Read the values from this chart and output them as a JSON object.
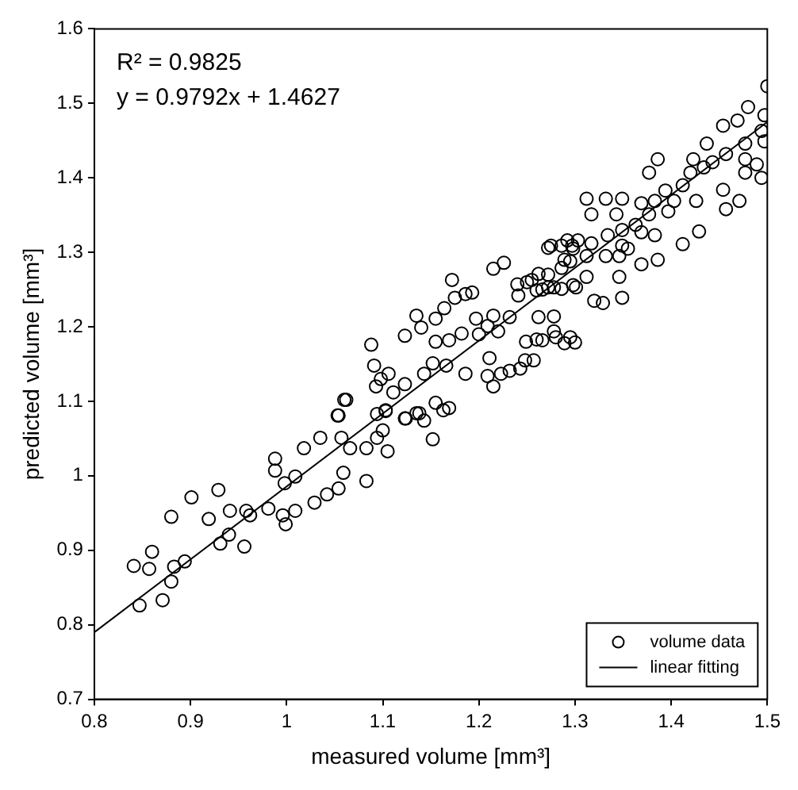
{
  "chart_data": {
    "type": "scatter",
    "xlabel": "measured volume [mm³]",
    "ylabel": "predicted volume [mm³]",
    "annotations": [
      "R² = 0.9825",
      "y = 0.9792x + 1.4627"
    ],
    "xlim": [
      0.8,
      1.5
    ],
    "ylim": [
      0.7,
      1.6
    ],
    "xticks": [
      0.8,
      0.9,
      1,
      1.1,
      1.2,
      1.3,
      1.4,
      1.5
    ],
    "yticks": [
      0.7,
      0.8,
      0.9,
      1,
      1.1,
      1.2,
      1.3,
      1.4,
      1.5,
      1.6
    ],
    "grid": false,
    "legend": "bottom right",
    "series": [
      {
        "name": "volume data",
        "marker": "circle",
        "color": "#000000",
        "x": [
          0.847,
          0.871,
          0.841,
          0.857,
          0.86,
          0.88,
          0.883,
          0.894,
          0.88,
          0.901,
          0.919,
          0.929,
          0.931,
          0.94,
          0.941,
          0.956,
          0.958,
          0.962,
          0.981,
          0.988,
          0.988,
          0.996,
          0.999,
          1.009,
          0.998,
          1.009,
          1.018,
          1.029,
          1.042,
          1.054,
          1.059,
          1.083,
          1.035,
          1.057,
          1.066,
          1.054,
          1.062,
          1.083,
          1.094,
          1.103,
          1.1,
          1.105,
          1.094,
          1.124,
          1.135,
          1.088,
          1.06,
          1.053,
          1.091,
          1.098,
          1.093,
          1.106,
          1.123,
          1.135,
          1.14,
          1.155,
          1.164,
          1.172,
          1.175,
          1.186,
          1.193,
          1.155,
          1.169,
          1.182,
          1.152,
          1.143,
          1.166,
          1.186,
          1.123,
          1.111,
          1.103,
          1.123,
          1.138,
          1.143,
          1.152,
          1.163,
          1.169,
          1.155,
          1.197,
          1.2,
          1.209,
          1.215,
          1.22,
          1.211,
          1.209,
          1.215,
          1.223,
          1.232,
          1.248,
          1.249,
          1.266,
          1.278,
          1.289,
          1.262,
          1.232,
          1.215,
          1.226,
          1.24,
          1.25,
          1.262,
          1.266,
          1.278,
          1.301,
          1.272,
          1.286,
          1.289,
          1.297,
          1.5,
          1.48,
          1.469,
          1.454,
          1.497,
          1.494,
          1.477,
          1.497,
          1.437,
          1.457,
          1.477,
          1.489,
          1.443,
          1.494,
          1.477,
          1.423,
          1.42,
          1.434,
          1.386,
          1.377,
          1.412,
          1.454,
          1.471,
          1.457,
          1.426,
          1.394,
          1.403,
          1.383,
          1.397,
          1.369,
          1.312,
          1.332,
          1.349,
          1.317,
          1.343,
          1.377,
          1.363,
          1.349,
          1.334,
          1.349,
          1.369,
          1.383,
          1.429,
          1.412,
          1.275,
          1.292,
          1.303,
          1.298,
          1.312,
          1.317,
          1.332,
          1.346,
          1.355,
          1.369,
          1.386,
          1.346,
          1.32,
          1.329,
          1.349,
          1.312,
          1.298,
          1.295,
          1.286,
          1.272,
          1.255,
          1.26,
          1.272,
          1.286,
          1.241,
          1.278,
          1.26,
          1.28,
          1.295,
          1.3,
          1.257,
          1.243
        ],
        "values": [
          0.826,
          0.833,
          0.879,
          0.875,
          0.898,
          0.858,
          0.878,
          0.885,
          0.945,
          0.971,
          0.942,
          0.981,
          0.909,
          0.921,
          0.953,
          0.905,
          0.953,
          0.947,
          0.956,
          1.023,
          1.007,
          0.947,
          0.935,
          0.953,
          0.99,
          0.999,
          1.037,
          0.964,
          0.975,
          0.983,
          1.004,
          0.993,
          1.051,
          1.051,
          1.037,
          1.081,
          1.102,
          1.037,
          1.083,
          1.087,
          1.061,
          1.033,
          1.051,
          1.077,
          1.084,
          1.176,
          1.102,
          1.081,
          1.148,
          1.13,
          1.12,
          1.137,
          1.188,
          1.215,
          1.199,
          1.211,
          1.225,
          1.263,
          1.239,
          1.244,
          1.246,
          1.18,
          1.182,
          1.191,
          1.151,
          1.137,
          1.148,
          1.137,
          1.123,
          1.112,
          1.088,
          1.077,
          1.084,
          1.074,
          1.049,
          1.088,
          1.091,
          1.098,
          1.211,
          1.19,
          1.201,
          1.215,
          1.194,
          1.158,
          1.134,
          1.12,
          1.137,
          1.141,
          1.155,
          1.18,
          1.182,
          1.194,
          1.178,
          1.213,
          1.213,
          1.278,
          1.286,
          1.257,
          1.26,
          1.271,
          1.25,
          1.253,
          1.253,
          1.306,
          1.309,
          1.29,
          1.309,
          1.523,
          1.495,
          1.477,
          1.47,
          1.484,
          1.463,
          1.446,
          1.449,
          1.446,
          1.432,
          1.425,
          1.418,
          1.421,
          1.4,
          1.407,
          1.425,
          1.407,
          1.414,
          1.425,
          1.407,
          1.39,
          1.384,
          1.369,
          1.358,
          1.369,
          1.383,
          1.369,
          1.369,
          1.355,
          1.366,
          1.372,
          1.372,
          1.372,
          1.351,
          1.351,
          1.351,
          1.337,
          1.33,
          1.323,
          1.309,
          1.327,
          1.323,
          1.328,
          1.311,
          1.309,
          1.316,
          1.316,
          1.305,
          1.295,
          1.312,
          1.295,
          1.295,
          1.305,
          1.284,
          1.29,
          1.267,
          1.235,
          1.232,
          1.239,
          1.267,
          1.256,
          1.288,
          1.279,
          1.27,
          1.263,
          1.249,
          1.253,
          1.251,
          1.242,
          1.214,
          1.183,
          1.186,
          1.186,
          1.179,
          1.155,
          1.144
        ]
      },
      {
        "name": "linear fitting",
        "type": "line",
        "color": "#000000",
        "line_style": "solid",
        "x": [
          0.8,
          1.5
        ],
        "values": [
          0.79,
          1.475
        ]
      }
    ]
  }
}
